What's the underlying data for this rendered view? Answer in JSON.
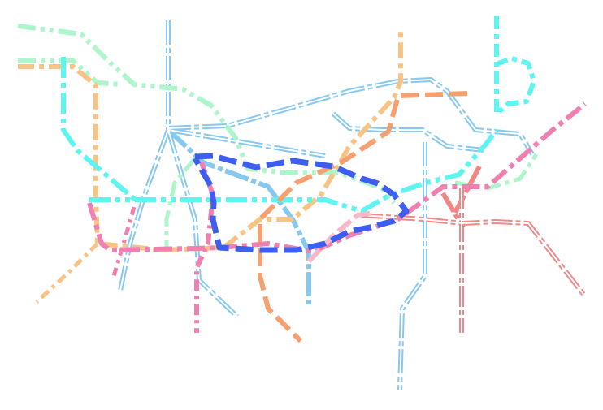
{
  "diagram": {
    "type": "transit-route-map",
    "labels": [],
    "routes": [
      {
        "id": "lightblue-line",
        "color": "#86c8f0",
        "style": "double-dash-dot"
      },
      {
        "id": "aqua-line",
        "color": "#5ef5f0",
        "style": "dash-dot"
      },
      {
        "id": "mint-line",
        "color": "#aef5cc",
        "style": "dash-dot-dot"
      },
      {
        "id": "orange-line",
        "color": "#f5a070",
        "style": "dashed"
      },
      {
        "id": "peach-line",
        "color": "#f8c485",
        "style": "dash-dot"
      },
      {
        "id": "blue-line",
        "color": "#3d5ef0",
        "style": "dashed"
      },
      {
        "id": "pink-line",
        "color": "#f080b0",
        "style": "dash-dot"
      },
      {
        "id": "lightpink-line",
        "color": "#f8b8cc",
        "style": "dashed"
      },
      {
        "id": "salmon-line",
        "color": "#f08888",
        "style": "double-dash-dot"
      }
    ]
  }
}
